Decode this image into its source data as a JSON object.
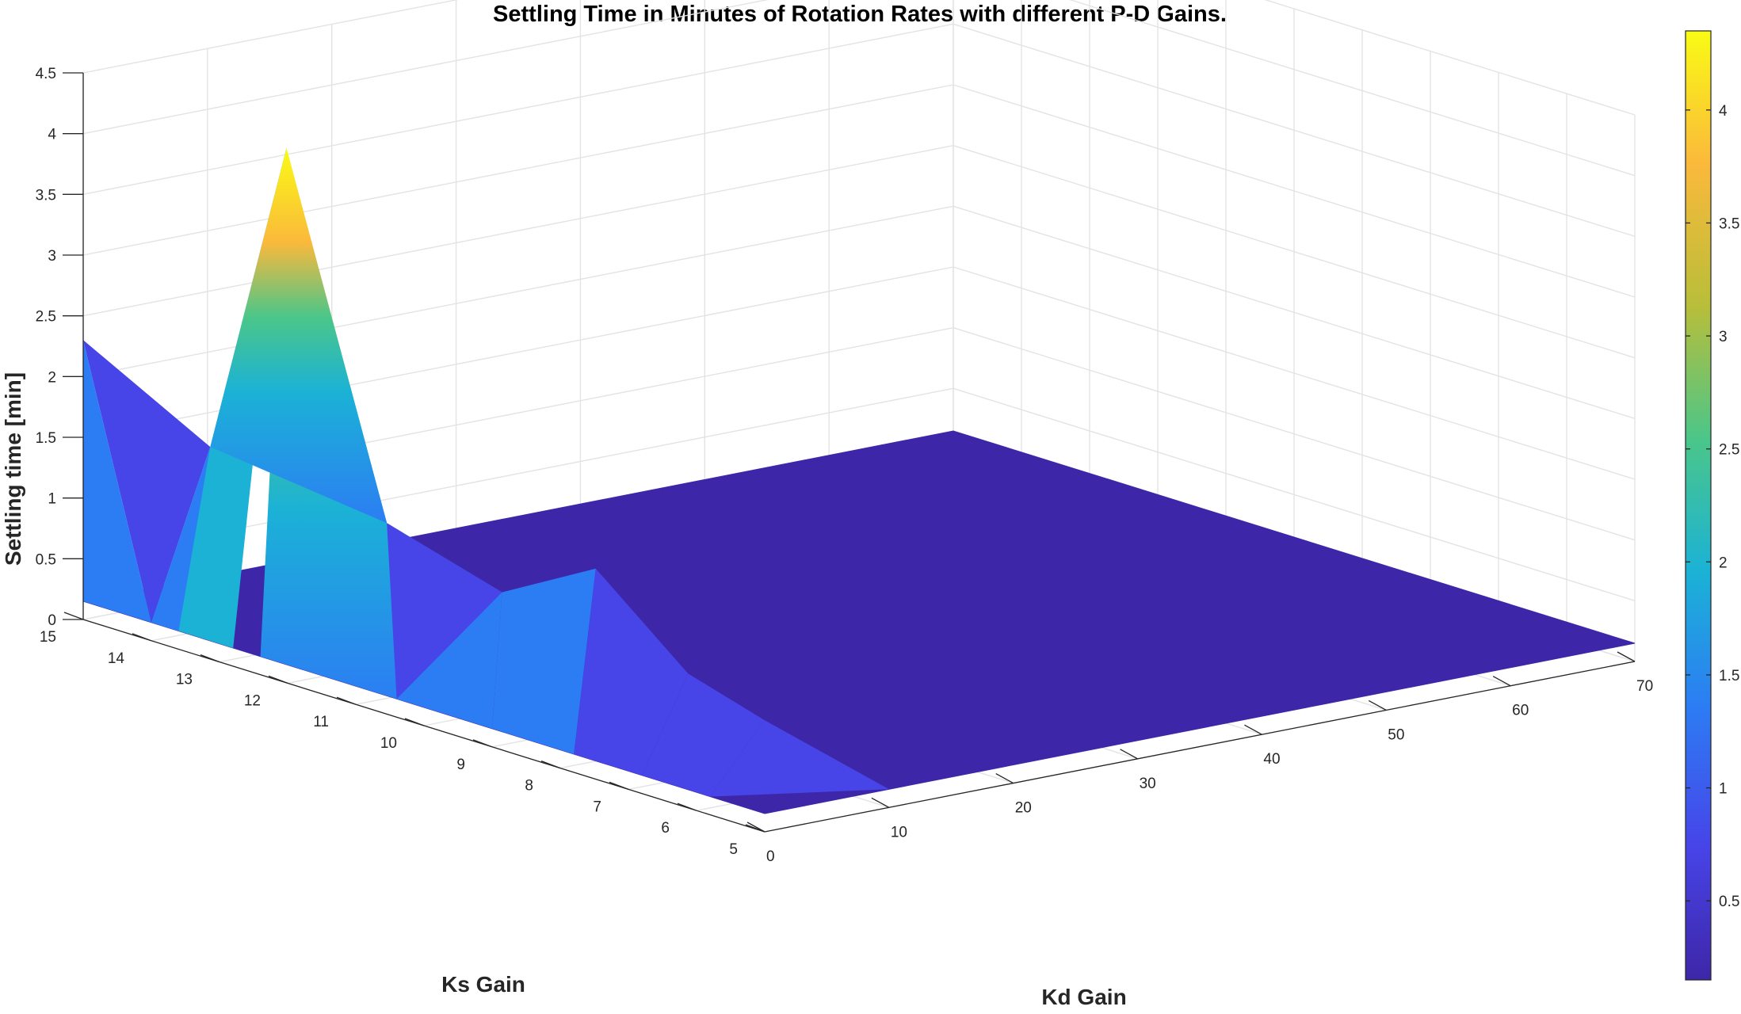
{
  "chart_data": {
    "type": "surface",
    "title": "Settling Time in Minutes of Rotation Rates with different P-D Gains.",
    "xlabel": "Kd Gain",
    "ylabel": "Ks Gain",
    "zlabel": "Settling time [min]",
    "xlim": [
      0,
      70
    ],
    "ylim": [
      5,
      15
    ],
    "zlim": [
      0,
      4.5
    ],
    "xticks": [
      "0",
      "10",
      "20",
      "30",
      "40",
      "50",
      "60",
      "70"
    ],
    "yticks": [
      "5",
      "6",
      "7",
      "8",
      "9",
      "10",
      "11",
      "12",
      "13",
      "14",
      "15"
    ],
    "zticks": [
      "0",
      "0.5",
      "1",
      "1.5",
      "2",
      "2.5",
      "3",
      "3.5",
      "4",
      "4.5"
    ],
    "grid": true,
    "colormap": "parula",
    "colorbar": {
      "limits": [
        0.15,
        4.35
      ],
      "ticks": [
        "0.5",
        "1",
        "1.5",
        "2",
        "2.5",
        "3",
        "3.5",
        "4"
      ]
    },
    "kd": [
      0,
      10,
      20,
      30,
      40,
      50,
      60,
      70
    ],
    "ks": [
      5,
      10,
      15
    ],
    "z": [
      [
        0.15,
        0.15,
        0.15,
        0.15,
        0.15,
        0.15,
        0.15,
        0.15
      ],
      [
        1.4,
        0.15,
        0.15,
        0.15,
        0.15,
        0.15,
        0.15,
        0.15
      ],
      [
        2.3,
        0.15,
        0.15,
        0.15,
        0.15,
        0.15,
        0.15,
        0.15
      ]
    ],
    "peaks": [
      {
        "kd": 1,
        "ks": 12.2,
        "z": 4.35
      },
      {
        "kd": 0.9,
        "ks": 13.3,
        "z": 1.7
      },
      {
        "kd": 1.4,
        "ks": 10.8,
        "z": 1.5
      },
      {
        "kd": 1.9,
        "ks": 9.2,
        "z": 1.2
      },
      {
        "kd": 4.5,
        "ks": 8.3,
        "z": 1.5
      },
      {
        "kd": 5.9,
        "ks": 7.2,
        "z": 0.8
      },
      {
        "kd": 7.1,
        "ks": 6.3,
        "z": 0.55
      }
    ],
    "colors": {
      "c0": "#3e26a8",
      "c1": "#4744e8",
      "c2": "#2c7df4",
      "c3": "#1bb2d6",
      "c4": "#4bc689",
      "c5": "#b8be3a",
      "c6": "#fbb93b",
      "c7": "#f9fb15"
    }
  }
}
